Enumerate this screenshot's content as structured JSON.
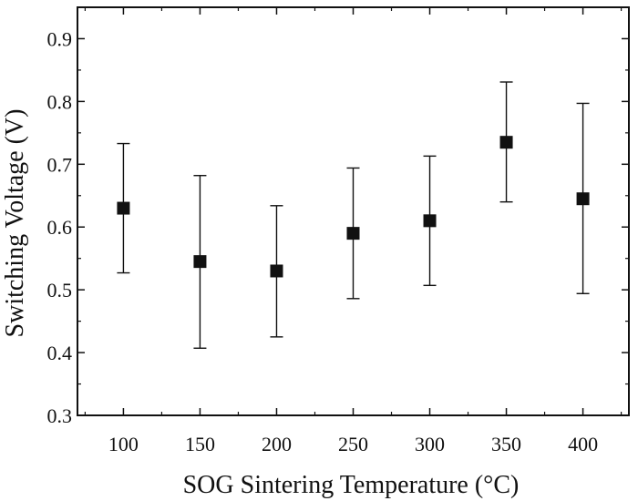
{
  "chart_data": {
    "type": "scatter",
    "title": "",
    "xlabel": "SOG Sintering Temperature (°C)",
    "ylabel": "Switching Voltage (V)",
    "xlim": [
      70,
      430
    ],
    "ylim": [
      0.3,
      0.95
    ],
    "x_ticks": [
      100,
      150,
      200,
      250,
      300,
      350,
      400
    ],
    "x_tick_labels": [
      "100",
      "150",
      "200",
      "250",
      "300",
      "350",
      "400"
    ],
    "y_ticks": [
      0.3,
      0.4,
      0.5,
      0.6,
      0.7,
      0.8,
      0.9
    ],
    "y_tick_labels": [
      "0.3",
      "0.4",
      "0.5",
      "0.6",
      "0.7",
      "0.8",
      "0.9"
    ],
    "grid": false,
    "legend": "none",
    "series": [
      {
        "name": "Switching Voltage",
        "marker": "filled-square",
        "x": [
          100,
          150,
          200,
          250,
          300,
          350,
          400
        ],
        "y": [
          0.63,
          0.545,
          0.53,
          0.59,
          0.61,
          0.735,
          0.645
        ],
        "error_low": [
          0.527,
          0.407,
          0.425,
          0.486,
          0.507,
          0.64,
          0.494
        ],
        "error_high": [
          0.733,
          0.682,
          0.634,
          0.694,
          0.713,
          0.831,
          0.797
        ]
      }
    ]
  },
  "colors": {
    "ink": "#111111",
    "background": "#ffffff"
  }
}
